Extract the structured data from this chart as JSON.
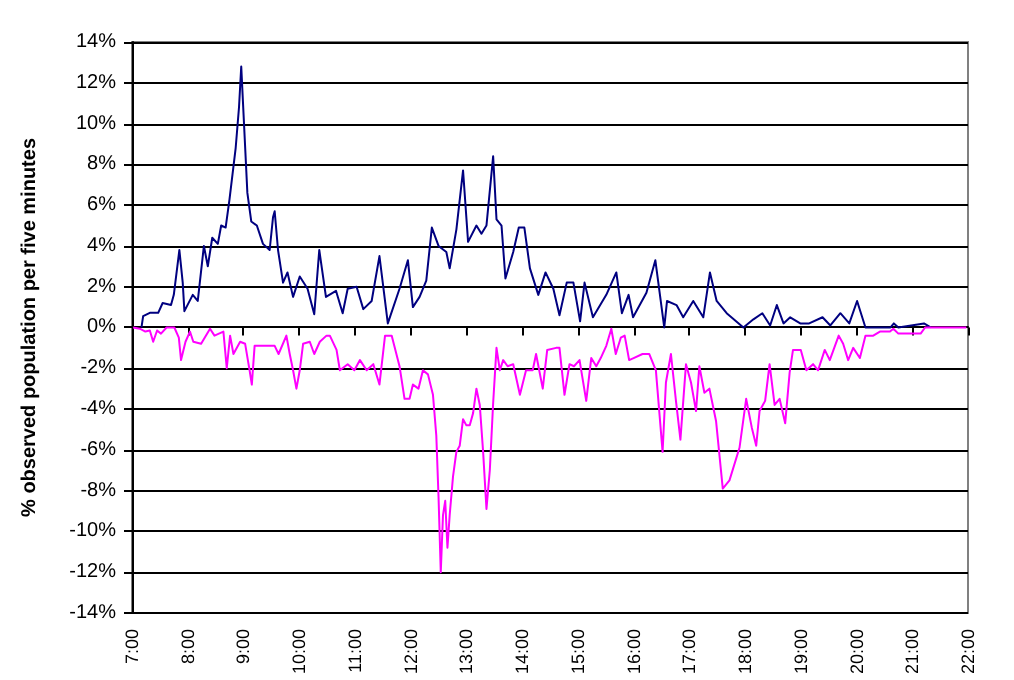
{
  "chart_data": {
    "type": "line",
    "ylabel": "% observed population per five minutes",
    "xlim": [
      7,
      22
    ],
    "xticks": [
      {
        "value": 7,
        "label": "7:00"
      },
      {
        "value": 8,
        "label": "8:00"
      },
      {
        "value": 9,
        "label": "9:00"
      },
      {
        "value": 10,
        "label": "10:00"
      },
      {
        "value": 11,
        "label": "11:00"
      },
      {
        "value": 12,
        "label": "12:00"
      },
      {
        "value": 13,
        "label": "13:00"
      },
      {
        "value": 14,
        "label": "14:00"
      },
      {
        "value": 15,
        "label": "15:00"
      },
      {
        "value": 16,
        "label": "16:00"
      },
      {
        "value": 17,
        "label": "17:00"
      },
      {
        "value": 18,
        "label": "18:00"
      },
      {
        "value": 19,
        "label": "19:00"
      },
      {
        "value": 20,
        "label": "20:00"
      },
      {
        "value": 21,
        "label": "21:00"
      },
      {
        "value": 22,
        "label": "22:00"
      }
    ],
    "ylim": [
      -14,
      14
    ],
    "yticks": [
      {
        "value": -14,
        "label": "-14%"
      },
      {
        "value": -12,
        "label": "-12%"
      },
      {
        "value": -10,
        "label": "-10%"
      },
      {
        "value": -8,
        "label": "-8%"
      },
      {
        "value": -6,
        "label": "-6%"
      },
      {
        "value": -4,
        "label": "-4%"
      },
      {
        "value": -2,
        "label": "-2%"
      },
      {
        "value": 0,
        "label": "0%"
      },
      {
        "value": 2,
        "label": "2%"
      },
      {
        "value": 4,
        "label": "4%"
      },
      {
        "value": 6,
        "label": "6%"
      },
      {
        "value": 8,
        "label": "8%"
      },
      {
        "value": 10,
        "label": "10%"
      },
      {
        "value": 12,
        "label": "12%"
      },
      {
        "value": 14,
        "label": "14%"
      }
    ],
    "grid": "y",
    "marker": "none",
    "line_style": "solid",
    "series": [
      {
        "color": "#000080",
        "x": [
          7.17,
          7.2,
          7.32,
          7.47,
          7.55,
          7.7,
          7.75,
          7.85,
          7.91,
          7.94,
          8.09,
          8.18,
          8.29,
          8.36,
          8.44,
          8.54,
          8.6,
          8.68,
          8.75,
          8.86,
          8.92,
          8.96,
          8.99,
          9.07,
          9.14,
          9.24,
          9.35,
          9.47,
          9.53,
          9.56,
          9.62,
          9.71,
          9.79,
          9.89,
          10.01,
          10.15,
          10.27,
          10.36,
          10.48,
          10.66,
          10.78,
          10.87,
          11.03,
          11.15,
          11.3,
          11.44,
          11.59,
          11.8,
          11.95,
          12.04,
          12.16,
          12.28,
          12.38,
          12.5,
          12.64,
          12.7,
          12.82,
          12.94,
          13.03,
          13.18,
          13.27,
          13.36,
          13.48,
          13.54,
          13.63,
          13.7,
          13.84,
          13.94,
          14.04,
          14.14,
          14.29,
          14.42,
          14.56,
          14.67,
          14.8,
          14.92,
          15.04,
          15.12,
          15.27,
          15.51,
          15.69,
          15.79,
          15.91,
          15.99,
          16.23,
          16.39,
          16.55,
          16.6,
          16.77,
          16.89,
          17.07,
          17.25,
          17.37,
          17.49,
          17.67,
          17.97,
          18.15,
          18.31,
          18.45,
          18.57,
          18.69,
          18.81,
          18.99,
          19.15,
          19.39,
          19.53,
          19.71,
          19.87,
          20.01,
          20.16,
          20.61,
          20.67,
          20.75,
          21.21,
          21.33
        ],
        "values": [
          0,
          0.56,
          0.72,
          0.72,
          1.2,
          1.1,
          1.6,
          3.8,
          2.2,
          0.8,
          1.6,
          1.3,
          4.0,
          3.0,
          4.4,
          4.1,
          5.0,
          4.9,
          6.3,
          8.8,
          10.8,
          12.8,
          11.1,
          6.6,
          5.2,
          5.0,
          4.1,
          3.8,
          5.4,
          5.7,
          3.8,
          2.2,
          2.7,
          1.5,
          2.5,
          1.9,
          0.65,
          3.8,
          1.5,
          1.8,
          0.7,
          1.9,
          2.0,
          0.9,
          1.3,
          3.5,
          0.2,
          1.9,
          3.3,
          1.0,
          1.5,
          2.3,
          4.9,
          4.0,
          3.7,
          2.9,
          4.8,
          7.7,
          4.2,
          5.0,
          4.6,
          5.0,
          8.4,
          5.3,
          5.0,
          2.4,
          3.7,
          4.9,
          4.9,
          2.9,
          1.6,
          2.7,
          1.9,
          0.6,
          2.2,
          2.2,
          0.3,
          2.2,
          0.5,
          1.6,
          2.7,
          0.7,
          1.6,
          0.5,
          1.7,
          3.3,
          0,
          1.3,
          1.1,
          0.5,
          1.3,
          0.5,
          2.7,
          1.3,
          0.7,
          0,
          0.4,
          0.7,
          0.1,
          1.1,
          0.2,
          0.5,
          0.2,
          0.2,
          0.5,
          0.1,
          0.7,
          0.2,
          1.3,
          0,
          0,
          0.2,
          0,
          0.2,
          0
        ]
      },
      {
        "color": "#ff00ff",
        "x": [
          7.02,
          7.14,
          7.24,
          7.32,
          7.38,
          7.45,
          7.52,
          7.62,
          7.76,
          7.84,
          7.88,
          7.96,
          8.04,
          8.1,
          8.24,
          8.4,
          8.48,
          8.64,
          8.7,
          8.76,
          8.82,
          8.94,
          9.03,
          9.11,
          9.15,
          9.2,
          9.56,
          9.63,
          9.77,
          9.83,
          9.89,
          9.95,
          10.01,
          10.07,
          10.19,
          10.27,
          10.37,
          10.49,
          10.55,
          10.67,
          10.73,
          10.87,
          10.99,
          11.09,
          11.21,
          11.33,
          11.44,
          11.54,
          11.66,
          11.8,
          11.89,
          11.98,
          12.04,
          12.14,
          12.22,
          12.31,
          12.4,
          12.46,
          12.5,
          12.54,
          12.58,
          12.62,
          12.66,
          12.7,
          12.76,
          12.82,
          12.88,
          12.94,
          13.0,
          13.06,
          13.12,
          13.18,
          13.24,
          13.3,
          13.36,
          13.42,
          13.48,
          13.54,
          13.6,
          13.66,
          13.74,
          13.84,
          13.96,
          14.07,
          14.19,
          14.25,
          14.37,
          14.45,
          14.61,
          14.67,
          14.76,
          14.85,
          14.93,
          15.03,
          15.15,
          15.24,
          15.33,
          15.41,
          15.51,
          15.6,
          15.68,
          15.77,
          15.84,
          15.92,
          16.0,
          16.16,
          16.28,
          16.4,
          16.52,
          16.58,
          16.67,
          16.76,
          16.84,
          16.94,
          17.03,
          17.12,
          17.18,
          17.27,
          17.36,
          17.48,
          17.6,
          17.72,
          17.9,
          18.02,
          18.12,
          18.2,
          18.26,
          18.36,
          18.44,
          18.53,
          18.62,
          18.72,
          18.8,
          18.86,
          19.0,
          19.1,
          19.22,
          19.31,
          19.43,
          19.52,
          19.68,
          19.76,
          19.85,
          19.94,
          20.06,
          20.16,
          20.3,
          20.42,
          20.6,
          20.66,
          20.75,
          21.15,
          21.23,
          21.97
        ],
        "values": [
          0,
          -0.06,
          -0.2,
          -0.15,
          -0.7,
          -0.15,
          -0.3,
          0,
          0,
          -0.5,
          -1.6,
          -0.7,
          -0.2,
          -0.7,
          -0.8,
          -0.06,
          -0.4,
          -0.2,
          -2.0,
          -0.4,
          -1.3,
          -0.7,
          -0.8,
          -2.1,
          -2.8,
          -0.9,
          -0.9,
          -1.3,
          -0.4,
          -1.3,
          -2.1,
          -3.0,
          -2.1,
          -0.8,
          -0.7,
          -1.3,
          -0.7,
          -0.4,
          -0.4,
          -1.1,
          -2.1,
          -1.8,
          -2.1,
          -1.6,
          -2.1,
          -1.8,
          -2.8,
          -0.4,
          -0.4,
          -1.9,
          -3.5,
          -3.5,
          -2.8,
          -3.0,
          -2.1,
          -2.3,
          -3.3,
          -5.3,
          -8.3,
          -12.0,
          -9.2,
          -8.5,
          -10.8,
          -9.2,
          -7.3,
          -6.1,
          -5.8,
          -4.5,
          -4.8,
          -4.8,
          -4.2,
          -3.0,
          -3.8,
          -6.1,
          -8.9,
          -7.0,
          -3.7,
          -1.0,
          -2.1,
          -1.6,
          -1.9,
          -1.8,
          -3.3,
          -2.1,
          -2.1,
          -1.3,
          -3.0,
          -1.1,
          -1.0,
          -1.0,
          -3.3,
          -1.8,
          -1.9,
          -1.6,
          -3.6,
          -1.5,
          -1.9,
          -1.5,
          -0.9,
          -0.06,
          -1.3,
          -0.5,
          -0.4,
          -1.6,
          -1.5,
          -1.3,
          -1.3,
          -2.1,
          -6.1,
          -2.7,
          -1.3,
          -3.6,
          -5.5,
          -1.8,
          -2.7,
          -4.1,
          -1.9,
          -3.2,
          -3.0,
          -4.6,
          -7.9,
          -7.5,
          -5.9,
          -3.5,
          -4.9,
          -5.8,
          -4.1,
          -3.6,
          -1.8,
          -3.8,
          -3.5,
          -4.7,
          -2.2,
          -1.1,
          -1.1,
          -2.1,
          -1.8,
          -2.1,
          -1.1,
          -1.6,
          -0.4,
          -0.8,
          -1.6,
          -1.0,
          -1.5,
          -0.4,
          -0.4,
          -0.2,
          -0.2,
          -0.06,
          -0.3,
          -0.3,
          0,
          0
        ]
      }
    ]
  }
}
